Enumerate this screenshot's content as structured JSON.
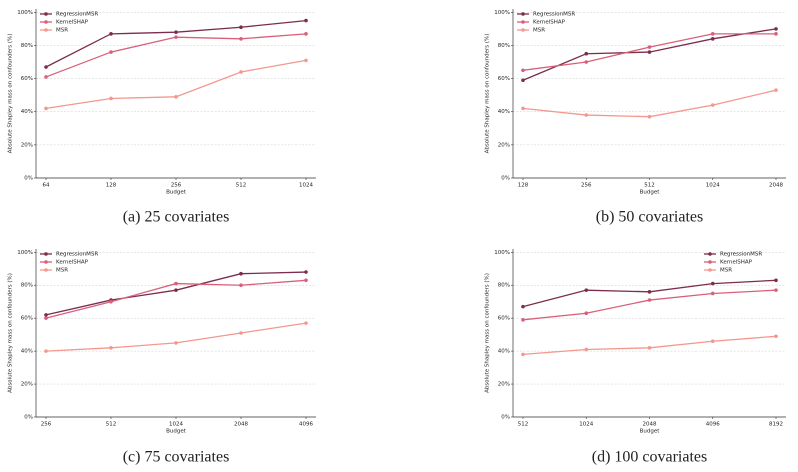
{
  "chart_data": [
    {
      "type": "line",
      "caption": "(a) 25 covariates",
      "xlabel": "Budget",
      "ylabel": "Absolute Shapley mass on confounders (%)",
      "categories": [
        "64",
        "128",
        "256",
        "512",
        "1024"
      ],
      "series": [
        {
          "name": "RegressionMSR",
          "color": "#7b2d4e",
          "values": [
            67,
            87,
            88,
            91,
            95
          ]
        },
        {
          "name": "KernelSHAP",
          "color": "#d9607a",
          "values": [
            61,
            76,
            85,
            84,
            87
          ]
        },
        {
          "name": "MSR",
          "color": "#f4978e",
          "values": [
            42,
            48,
            49,
            64,
            71
          ]
        }
      ],
      "ylim": [
        0,
        102
      ],
      "yticks": [
        {
          "value": 0,
          "label": "0%"
        },
        {
          "value": 20,
          "label": "20%"
        },
        {
          "value": 40,
          "label": "40%"
        },
        {
          "value": 60,
          "label": "60%"
        },
        {
          "value": 80,
          "label": "80%"
        },
        {
          "value": 100,
          "label": "100%"
        }
      ],
      "grid": true,
      "legend": "upper left"
    },
    {
      "type": "line",
      "caption": "(b) 50 covariates",
      "xlabel": "Budget",
      "ylabel": "Absolute Shapley mass on confounders (%)",
      "categories": [
        "128",
        "256",
        "512",
        "1024",
        "2048"
      ],
      "series": [
        {
          "name": "RegressionMSR",
          "color": "#7b2d4e",
          "values": [
            59,
            75,
            76,
            84,
            90
          ]
        },
        {
          "name": "KernelSHAP",
          "color": "#d9607a",
          "values": [
            65,
            70,
            79,
            87,
            87
          ]
        },
        {
          "name": "MSR",
          "color": "#f4978e",
          "values": [
            42,
            38,
            37,
            44,
            53
          ]
        }
      ],
      "ylim": [
        0,
        102
      ],
      "yticks": [
        {
          "value": 0,
          "label": "0%"
        },
        {
          "value": 20,
          "label": "20%"
        },
        {
          "value": 40,
          "label": "40%"
        },
        {
          "value": 60,
          "label": "60%"
        },
        {
          "value": 80,
          "label": "80%"
        },
        {
          "value": 100,
          "label": "100%"
        }
      ],
      "grid": true,
      "legend": "upper left"
    },
    {
      "type": "line",
      "caption": "(c) 75 covariates",
      "xlabel": "Budget",
      "ylabel": "Absolute Shapley mass on confounders (%)",
      "categories": [
        "256",
        "512",
        "1024",
        "2048",
        "4096"
      ],
      "series": [
        {
          "name": "RegressionMSR",
          "color": "#7b2d4e",
          "values": [
            62,
            71,
            77,
            87,
            88
          ]
        },
        {
          "name": "KernelSHAP",
          "color": "#d9607a",
          "values": [
            60,
            70,
            81,
            80,
            83
          ]
        },
        {
          "name": "MSR",
          "color": "#f4978e",
          "values": [
            40,
            42,
            45,
            51,
            57
          ]
        }
      ],
      "ylim": [
        0,
        102
      ],
      "yticks": [
        {
          "value": 0,
          "label": "0%"
        },
        {
          "value": 20,
          "label": "20%"
        },
        {
          "value": 40,
          "label": "40%"
        },
        {
          "value": 60,
          "label": "60%"
        },
        {
          "value": 80,
          "label": "80%"
        },
        {
          "value": 100,
          "label": "100%"
        }
      ],
      "grid": true,
      "legend": "upper left"
    },
    {
      "type": "line",
      "caption": "(d) 100 covariates",
      "xlabel": "Budget",
      "ylabel": "Absolute Shapley mass on confounders (%)",
      "categories": [
        "512",
        "1024",
        "2048",
        "4096",
        "8192"
      ],
      "series": [
        {
          "name": "RegressionMSR",
          "color": "#7b2d4e",
          "values": [
            67,
            77,
            76,
            81,
            83
          ]
        },
        {
          "name": "KernelSHAP",
          "color": "#d9607a",
          "values": [
            59,
            63,
            71,
            75,
            77
          ]
        },
        {
          "name": "MSR",
          "color": "#f4978e",
          "values": [
            38,
            41,
            42,
            46,
            49
          ]
        }
      ],
      "ylim": [
        0,
        102
      ],
      "yticks": [
        {
          "value": 0,
          "label": "0%"
        },
        {
          "value": 20,
          "label": "20%"
        },
        {
          "value": 40,
          "label": "40%"
        },
        {
          "value": 60,
          "label": "60%"
        },
        {
          "value": 80,
          "label": "80%"
        },
        {
          "value": 100,
          "label": "100%"
        }
      ],
      "grid": true,
      "legend": "upper right"
    }
  ]
}
